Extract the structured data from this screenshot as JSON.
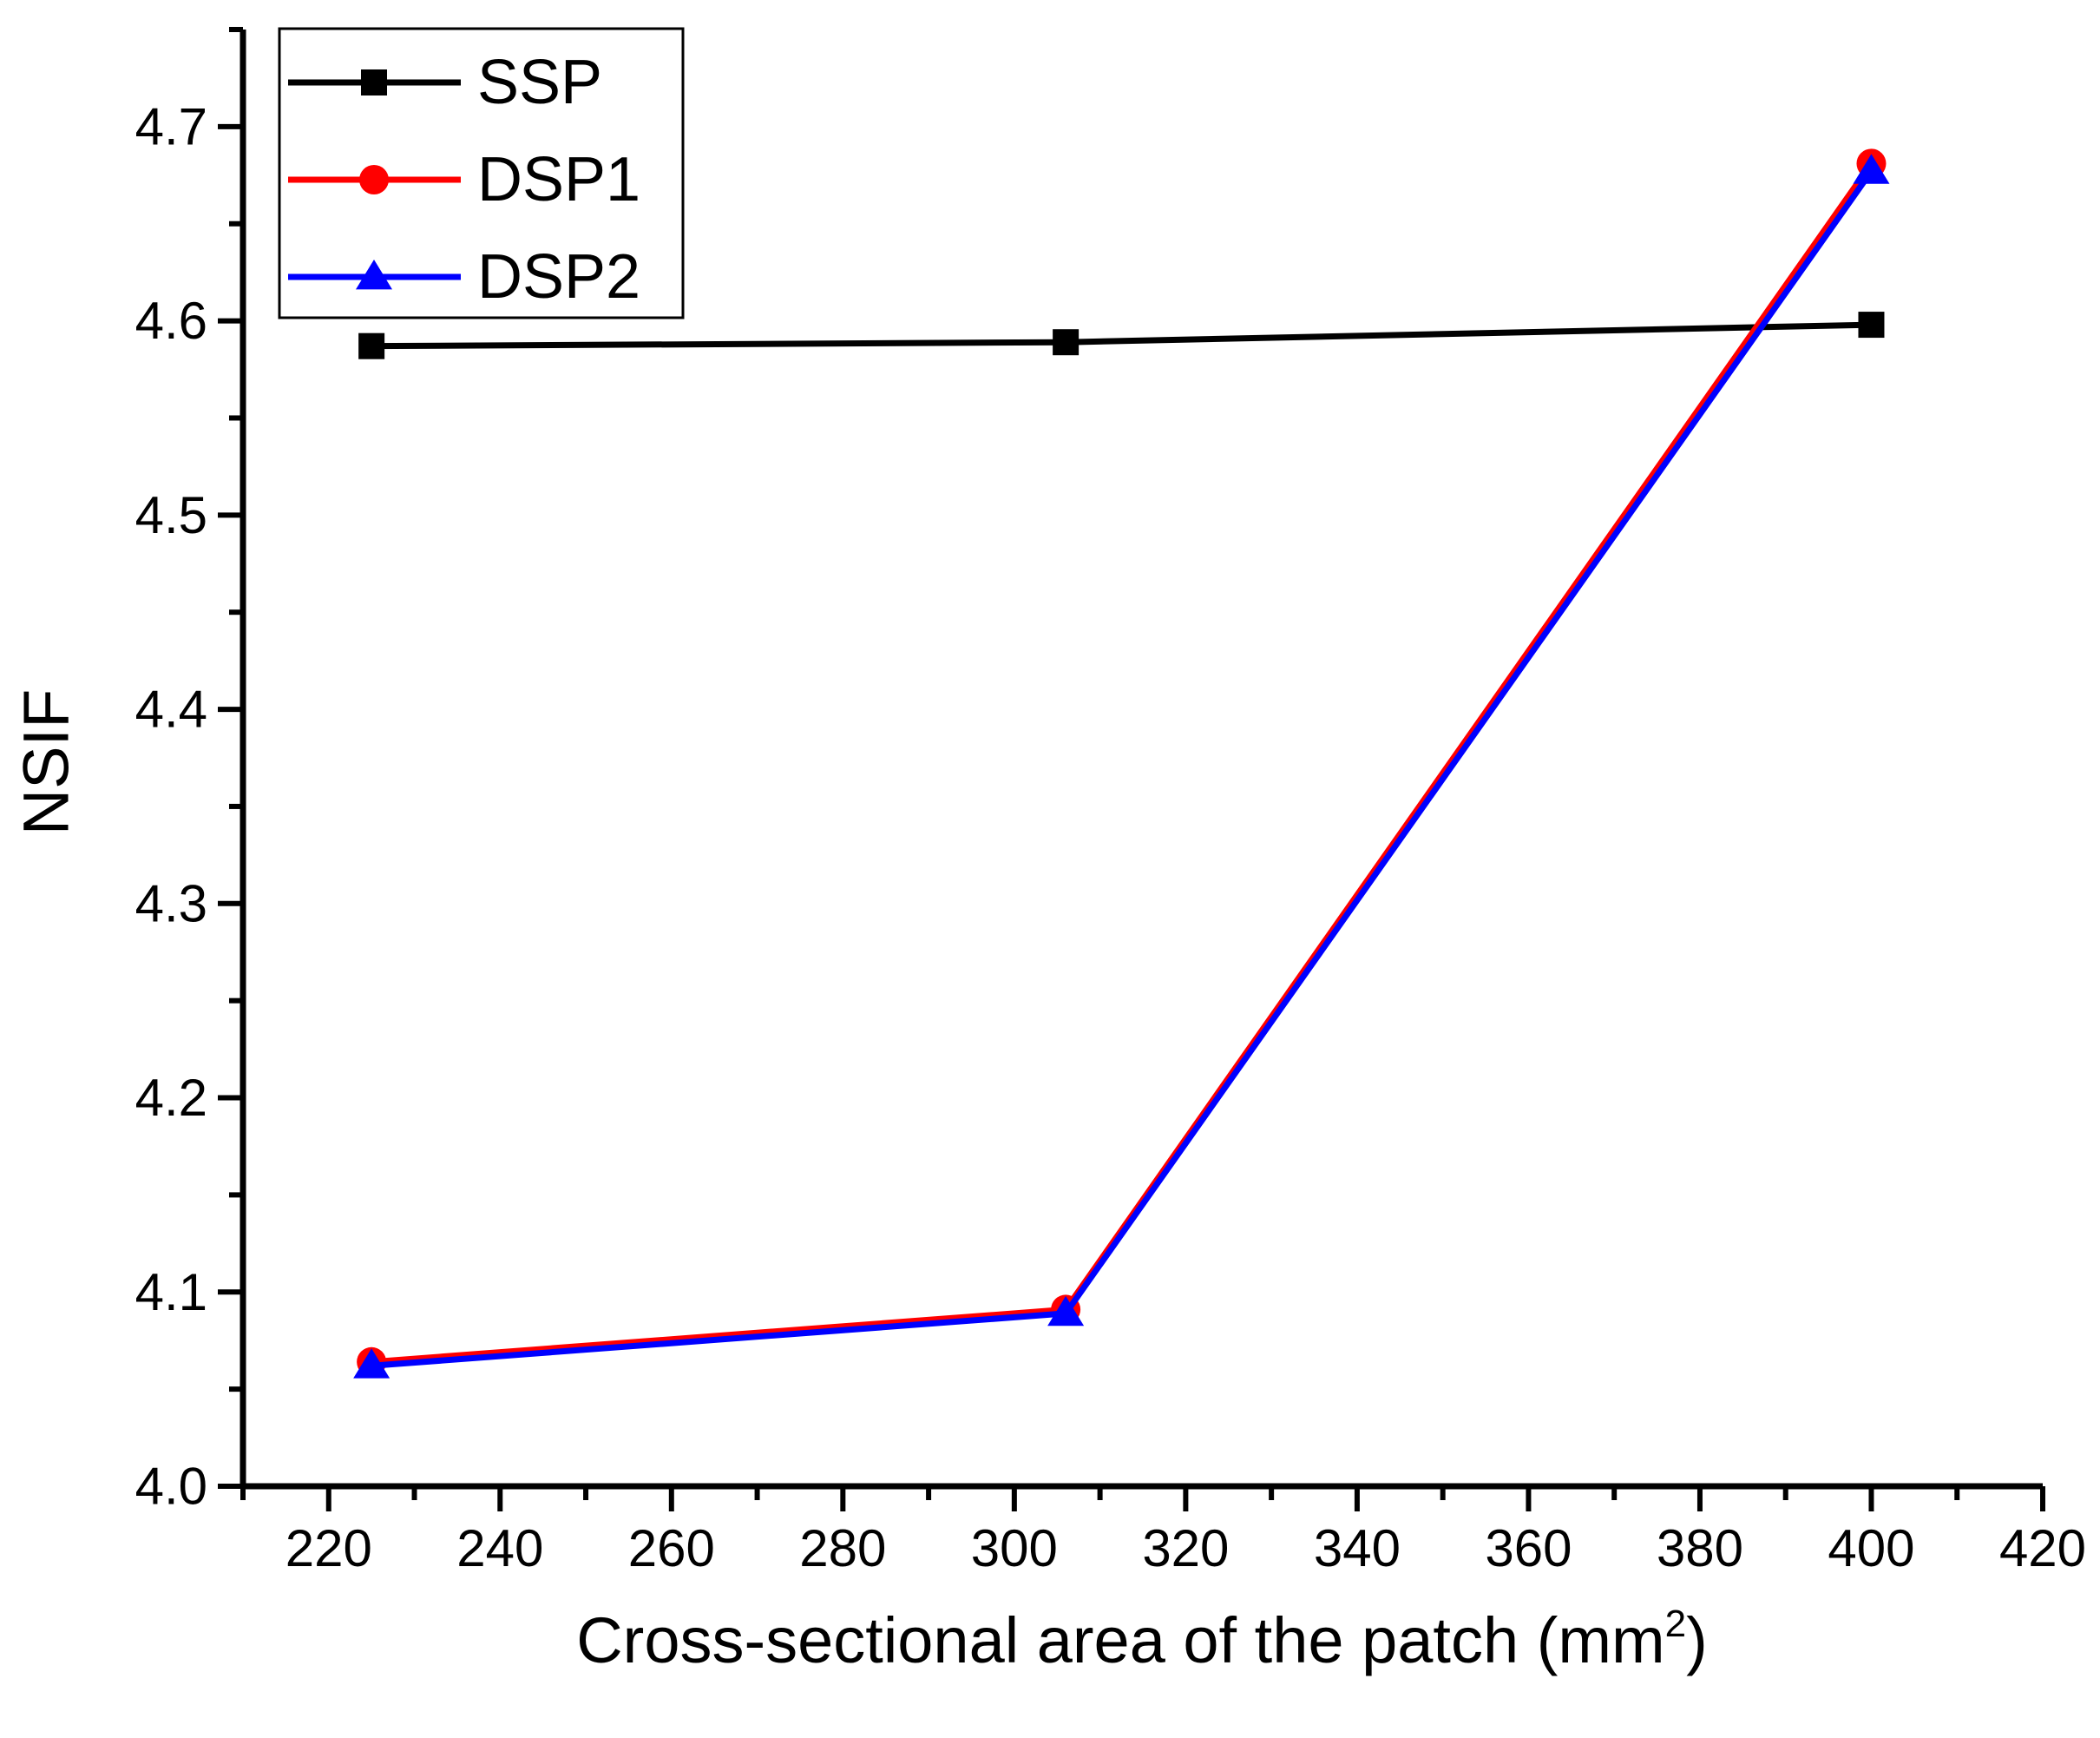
{
  "chart_data": {
    "type": "line",
    "title": "",
    "xlabel": "Cross-sectional area of the patch (mm",
    "xlabel_superscript": "2",
    "xlabel_suffix": ")",
    "ylabel": "NSIF",
    "xlim": [
      210,
      420
    ],
    "ylim": [
      4.0,
      4.75
    ],
    "x_ticks": [
      220,
      240,
      260,
      280,
      300,
      320,
      340,
      360,
      380,
      400,
      420
    ],
    "y_ticks": [
      4.0,
      4.1,
      4.2,
      4.3,
      4.4,
      4.5,
      4.6,
      4.7
    ],
    "x_tick_labels": [
      "220",
      "240",
      "260",
      "280",
      "300",
      "320",
      "340",
      "360",
      "380",
      "400",
      "420"
    ],
    "y_tick_labels": [
      "4.0",
      "4.1",
      "4.2",
      "4.3",
      "4.4",
      "4.5",
      "4.6",
      "4.7"
    ],
    "legend_position": "top-left",
    "grid": false,
    "series": [
      {
        "name": "SSP",
        "color": "#000000",
        "marker": "square",
        "x": [
          225,
          306,
          400
        ],
        "y": [
          4.587,
          4.589,
          4.598
        ]
      },
      {
        "name": "DSP1",
        "color": "#ff0000",
        "marker": "circle",
        "x": [
          225,
          306,
          400
        ],
        "y": [
          4.064,
          4.091,
          4.681
        ]
      },
      {
        "name": "DSP2",
        "color": "#0000ff",
        "marker": "triangle",
        "x": [
          225,
          306,
          400
        ],
        "y": [
          4.062,
          4.089,
          4.677
        ]
      }
    ]
  }
}
